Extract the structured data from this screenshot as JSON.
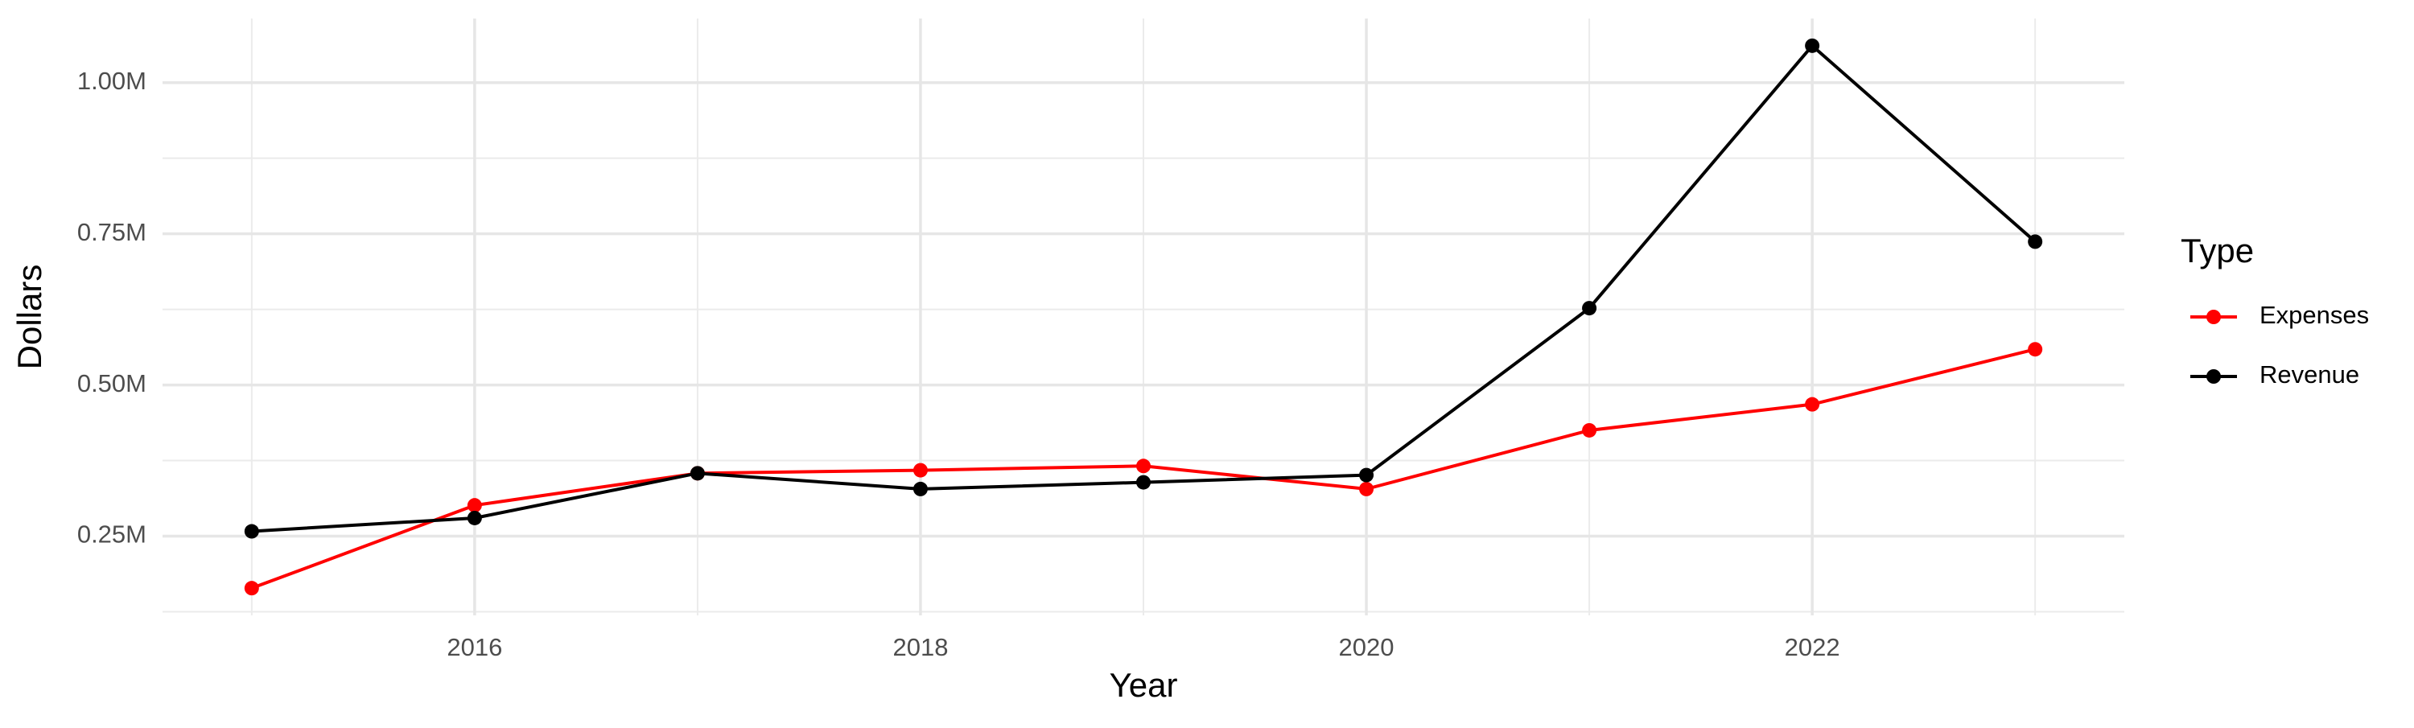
{
  "chart_data": {
    "type": "line",
    "x_label": "Year",
    "y_label": "Dollars",
    "legend_title": "Type",
    "legend_position": "right",
    "grid": true,
    "x": [
      2015,
      2016,
      2017,
      2018,
      2019,
      2020,
      2021,
      2022,
      2023
    ],
    "series": [
      {
        "name": "Expenses",
        "color": "#ff0000",
        "values": [
          164000,
          301000,
          354000,
          359000,
          366000,
          328000,
          425000,
          468000,
          559000
        ]
      },
      {
        "name": "Revenue",
        "color": "#000000",
        "values": [
          258000,
          280000,
          354000,
          328000,
          339000,
          351000,
          627000,
          1061000,
          737000
        ]
      }
    ],
    "xlim": [
      2014.6,
      2023.4
    ],
    "xticks": [
      2016,
      2018,
      2020,
      2022
    ],
    "x_minor_gridlines": [
      2015,
      2017,
      2019,
      2021,
      2023
    ],
    "ylim": [
      119000,
      1106000
    ],
    "yticks": [
      {
        "value": 250000,
        "label": "0.25M"
      },
      {
        "value": 500000,
        "label": "0.50M"
      },
      {
        "value": 750000,
        "label": "0.75M"
      },
      {
        "value": 1000000,
        "label": "1.00M"
      }
    ],
    "y_minor_gridlines": [
      125000,
      375000,
      625000,
      875000
    ]
  }
}
